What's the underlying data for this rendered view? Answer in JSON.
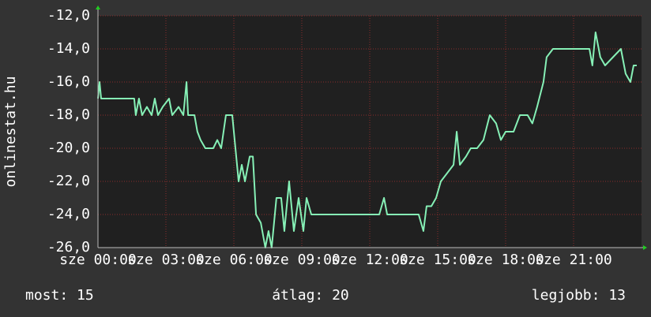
{
  "chart_data": {
    "type": "line",
    "y_label": "onlinestat.hu",
    "x": [
      0,
      0.07,
      0.14,
      1.6,
      1.67,
      1.81,
      1.95,
      2.16,
      2.37,
      2.51,
      2.65,
      2.86,
      3.14,
      3.28,
      3.56,
      3.77,
      3.91,
      3.98,
      4.26,
      4.39,
      4.53,
      4.74,
      5.09,
      5.27,
      5.44,
      5.65,
      5.93,
      6.07,
      6.21,
      6.35,
      6.49,
      6.7,
      6.84,
      6.98,
      7.19,
      7.39,
      7.53,
      7.67,
      7.88,
      8.09,
      8.23,
      8.44,
      8.65,
      8.86,
      9.07,
      9.21,
      9.42,
      12.42,
      12.63,
      12.77,
      14.16,
      14.37,
      14.51,
      14.72,
      14.93,
      15.14,
      15.42,
      15.7,
      15.84,
      15.98,
      16.25,
      16.46,
      16.74,
      17.02,
      17.3,
      17.58,
      17.79,
      18,
      18.35,
      18.63,
      18.97,
      19.18,
      19.39,
      19.67,
      19.81,
      20.09,
      21.7,
      21.83,
      21.97,
      22.18,
      22.39,
      22.74,
      23.09,
      23.3,
      23.51,
      23.65,
      23.79
    ],
    "values": [
      -17,
      -16,
      -17,
      -17,
      -18,
      -17,
      -18,
      -17.5,
      -18,
      -17,
      -18,
      -17.5,
      -17,
      -18,
      -17.5,
      -18,
      -16,
      -18,
      -18,
      -19,
      -19.5,
      -20,
      -20,
      -19.5,
      -20,
      -18,
      -18,
      -20,
      -22,
      -21,
      -22,
      -20.5,
      -20.5,
      -24,
      -24.5,
      -26,
      -25,
      -26,
      -23,
      -23,
      -25,
      -22,
      -25,
      -23,
      -25,
      -23,
      -24,
      -24,
      -23,
      -24,
      -24,
      -25,
      -23.5,
      -23.5,
      -23,
      -22,
      -21.5,
      -21,
      -19,
      -21,
      -20.5,
      -20,
      -20,
      -19.5,
      -18,
      -18.5,
      -19.5,
      -19,
      -19,
      -18,
      -18,
      -18.5,
      -17.5,
      -16,
      -14.5,
      -14,
      -14,
      -15,
      -13,
      -14.5,
      -15,
      -14.5,
      -14,
      -15.5,
      -16,
      -15,
      -15
    ],
    "color": "#86f0b6",
    "xlim": [
      0,
      24
    ],
    "xticks": [
      {
        "value": 0,
        "label": "sze 00:00"
      },
      {
        "value": 3,
        "label": "sze 03:00"
      },
      {
        "value": 6,
        "label": "sze 06:00"
      },
      {
        "value": 9,
        "label": "sze 09:00"
      },
      {
        "value": 12,
        "label": "sze 12:00"
      },
      {
        "value": 15,
        "label": "sze 15:00"
      },
      {
        "value": 18,
        "label": "sze 18:00"
      },
      {
        "value": 21,
        "label": "sze 21:00"
      }
    ],
    "ylim": [
      -26,
      -12
    ],
    "yticks": [
      {
        "value": -26,
        "label": "-26,0"
      },
      {
        "value": -24,
        "label": "-24,0"
      },
      {
        "value": -22,
        "label": "-22,0"
      },
      {
        "value": -20,
        "label": "-20,0"
      },
      {
        "value": -18,
        "label": "-18,0"
      },
      {
        "value": -16,
        "label": "-16,0"
      },
      {
        "value": -14,
        "label": "-14,0"
      },
      {
        "value": -12,
        "label": "-12,0"
      }
    ],
    "grid": true
  },
  "footer": {
    "current": "most: 15",
    "average": "átlag: 20",
    "best": "legjobb: 13"
  }
}
